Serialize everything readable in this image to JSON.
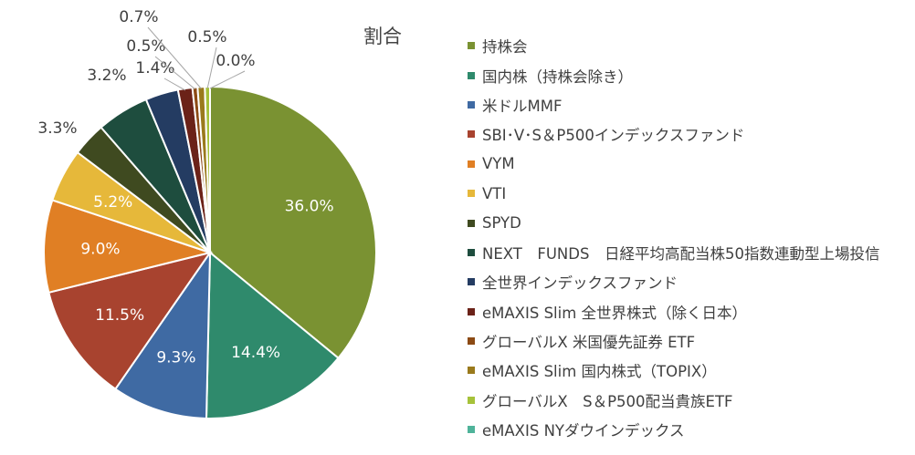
{
  "chart_data": {
    "type": "pie",
    "title": "割合",
    "legend_position": "right",
    "slices": [
      {
        "label": "持株会",
        "value": 36.0,
        "display": "36.0%",
        "color": "#7a9232"
      },
      {
        "label": "国内株（持株会除き）",
        "value": 14.4,
        "display": "14.4%",
        "color": "#2f8a6c"
      },
      {
        "label": "米ドルMMF",
        "value": 9.3,
        "display": "9.3%",
        "color": "#3f6aa3"
      },
      {
        "label": "SBI･V･S＆P500インデックスファンド",
        "value": 11.5,
        "display": "11.5%",
        "color": "#a8432f"
      },
      {
        "label": "VYM",
        "value": 9.0,
        "display": "9.0%",
        "color": "#e07f24"
      },
      {
        "label": "VTI",
        "value": 5.2,
        "display": "5.2%",
        "color": "#e6b83a"
      },
      {
        "label": "SPYD",
        "value": 3.3,
        "display": "3.3%",
        "color": "#3f4a20"
      },
      {
        "label": "NEXT　FUNDS　日経平均高配当株50指数連動型上場投信",
        "value": 5.1,
        "display": "",
        "color": "#1e4d3e"
      },
      {
        "label": "全世界インデックスファンド",
        "value": 3.2,
        "display": "3.2%",
        "color": "#243c62"
      },
      {
        "label": "eMAXIS Slim 全世界株式（除く日本）",
        "value": 1.4,
        "display": "1.4%",
        "color": "#6b2218"
      },
      {
        "label": "グローバルX 米国優先証券 ETF",
        "value": 0.5,
        "display": "0.5%",
        "color": "#8c4a14"
      },
      {
        "label": "eMAXIS Slim 国内株式（TOPIX）",
        "value": 0.7,
        "display": "0.7%",
        "color": "#9a7a1c"
      },
      {
        "label": "グローバルX　S＆P500配当貴族ETF",
        "value": 0.5,
        "display": "0.5%",
        "color": "#a6c23a"
      },
      {
        "label": "eMAXIS NYダウインデックス",
        "value": 0.0,
        "display": "0.0%",
        "color": "#4fb39a"
      }
    ]
  }
}
